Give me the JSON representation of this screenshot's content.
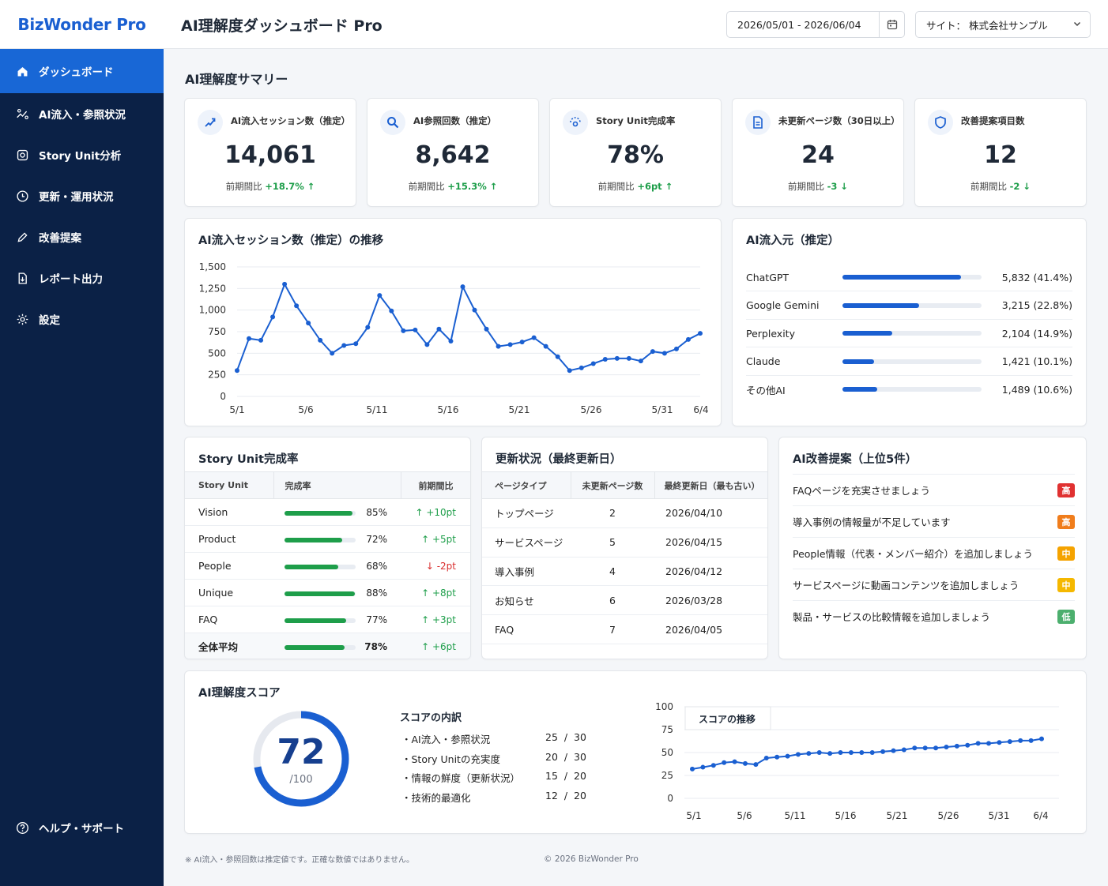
{
  "brand": "BizWonder Pro",
  "nav": [
    {
      "label": "ダッシュボード",
      "icon": "home-icon",
      "active": true
    },
    {
      "label": "AI流入・参照状況",
      "icon": "traffic-icon"
    },
    {
      "label": "Story Unit分析",
      "icon": "story-icon"
    },
    {
      "label": "更新・運用状況",
      "icon": "update-icon"
    },
    {
      "label": "改善提案",
      "icon": "pencil-icon"
    },
    {
      "label": "レポート出力",
      "icon": "report-icon"
    },
    {
      "label": "設定",
      "icon": "gear-icon"
    }
  ],
  "help_label": "ヘルプ・サポート",
  "header": {
    "title": "AI理解度ダッシュボード Pro",
    "date_range": "2026/05/01 - 2026/06/04",
    "site": "サイト： 株式会社サンプル"
  },
  "summary_title": "AI理解度サマリー",
  "kpis": [
    {
      "title": "AI流入セッション数（推定）",
      "value": "14,061",
      "cmp_label": "前期間比",
      "change": "+18.7%",
      "dir": "up",
      "icon": "ai-traffic-icon"
    },
    {
      "title": "AI参照回数（推定）",
      "value": "8,642",
      "cmp_label": "前期間比",
      "change": "+15.3%",
      "dir": "up",
      "icon": "search-icon"
    },
    {
      "title": "Story Unit完成率",
      "value": "78%",
      "cmp_label": "前期間比",
      "change": "+6pt",
      "dir": "up",
      "icon": "story-unit-icon"
    },
    {
      "title": "未更新ページ数（30日以上）",
      "value": "24",
      "cmp_label": "前期間比",
      "change": "-3",
      "dir": "down",
      "icon": "document-icon"
    },
    {
      "title": "改善提案項目数",
      "value": "12",
      "cmp_label": "前期間比",
      "change": "-2",
      "dir": "down",
      "icon": "shield-icon"
    }
  ],
  "sessions_chart": {
    "title": "AI流入セッション数（推定）の推移",
    "chart_data": {
      "type": "line",
      "x_ticks": [
        "5/1",
        "5/6",
        "5/11",
        "5/16",
        "5/21",
        "5/26",
        "5/31",
        "6/4"
      ],
      "y_ticks": [
        "0",
        "250",
        "500",
        "750",
        "1,000",
        "1,250",
        "1,500"
      ],
      "ylim": [
        0,
        1500
      ],
      "values": [
        300,
        670,
        650,
        920,
        1300,
        1050,
        850,
        650,
        500,
        590,
        610,
        800,
        1170,
        990,
        760,
        770,
        600,
        780,
        640,
        1270,
        1000,
        780,
        580,
        600,
        630,
        680,
        580,
        460,
        300,
        330,
        380,
        430,
        440,
        440,
        410,
        520,
        500,
        550,
        660,
        730
      ]
    }
  },
  "sources": {
    "title": "AI流入元（推定）",
    "items": [
      {
        "name": "ChatGPT",
        "value": "5,832 (41.4%)",
        "pct": 0.85
      },
      {
        "name": "Google Gemini",
        "value": "3,215 (22.8%)",
        "pct": 0.55
      },
      {
        "name": "Perplexity",
        "value": "2,104 (14.9%)",
        "pct": 0.36
      },
      {
        "name": "Claude",
        "value": "1,421 (10.1%)",
        "pct": 0.23
      },
      {
        "name": "その他AI",
        "value": "1,489 (10.6%)",
        "pct": 0.25
      }
    ]
  },
  "story_units": {
    "title": "Story Unit完成率",
    "headers": [
      "Story Unit",
      "完成率",
      "前期間比"
    ],
    "rows": [
      {
        "name": "Vision",
        "rate": "85%",
        "pct": 0.95,
        "change": "+10pt",
        "dir": "up"
      },
      {
        "name": "Product",
        "rate": "72%",
        "pct": 0.81,
        "change": "+5pt",
        "dir": "up"
      },
      {
        "name": "People",
        "rate": "68%",
        "pct": 0.76,
        "change": "-2pt",
        "dir": "down"
      },
      {
        "name": "Unique",
        "rate": "88%",
        "pct": 0.99,
        "change": "+8pt",
        "dir": "up"
      },
      {
        "name": "FAQ",
        "rate": "77%",
        "pct": 0.87,
        "change": "+3pt",
        "dir": "up"
      },
      {
        "name": "全体平均",
        "rate": "78%",
        "pct": 0.84,
        "change": "+6pt",
        "dir": "up",
        "bold": true
      }
    ]
  },
  "update_status": {
    "title": "更新状況（最終更新日）",
    "headers": [
      "ページタイプ",
      "未更新ページ数",
      "最終更新日（最も古い）"
    ],
    "rows": [
      {
        "type": "トップページ",
        "count": "2",
        "date": "2026/04/10"
      },
      {
        "type": "サービスページ",
        "count": "5",
        "date": "2026/04/15"
      },
      {
        "type": "導入事例",
        "count": "4",
        "date": "2026/04/12"
      },
      {
        "type": "お知らせ",
        "count": "6",
        "date": "2026/03/28"
      },
      {
        "type": "FAQ",
        "count": "7",
        "date": "2026/04/05"
      }
    ]
  },
  "suggestions": {
    "title": "AI改善提案（上位5件）",
    "items": [
      {
        "text": "FAQページを充実させましょう",
        "priority": "高",
        "color": "#e03131"
      },
      {
        "text": "導入事例の情報量が不足しています",
        "priority": "高",
        "color": "#f07d1c"
      },
      {
        "text": "People情報（代表・メンバー紹介）を追加しましょう",
        "priority": "中",
        "color": "#f5a300"
      },
      {
        "text": "サービスページに動画コンテンツを追加しましょう",
        "priority": "中",
        "color": "#f5b800"
      },
      {
        "text": "製品・サービスの比較情報を追加しましょう",
        "priority": "低",
        "color": "#4caf6e"
      }
    ]
  },
  "score": {
    "title": "AI理解度スコア",
    "value": "72",
    "max": "/100",
    "fraction": 0.72,
    "breakdown_title": "スコアの内訳",
    "breakdown": [
      {
        "label": "・AI流入・参照状況",
        "score": "25  /  30"
      },
      {
        "label": "・Story Unitの充実度",
        "score": "20  /  30"
      },
      {
        "label": "・情報の鮮度（更新状況）",
        "score": "15  /  20"
      },
      {
        "label": "・技術的最適化",
        "score": "12  /  20"
      }
    ],
    "trend": {
      "title": "スコアの推移",
      "chart_data": {
        "type": "line",
        "x_ticks": [
          "5/1",
          "5/6",
          "5/11",
          "5/16",
          "5/21",
          "5/26",
          "5/31",
          "6/4"
        ],
        "y_ticks": [
          "0",
          "25",
          "50",
          "75",
          "100"
        ],
        "ylim": [
          0,
          100
        ],
        "values": [
          32,
          34,
          36,
          39,
          40,
          38,
          37,
          44,
          45,
          46,
          48,
          49,
          50,
          49,
          50,
          50,
          50,
          50,
          51,
          52,
          53,
          55,
          55,
          55,
          56,
          57,
          58,
          60,
          60,
          61,
          62,
          63,
          63,
          65
        ]
      }
    }
  },
  "footer_note": "※ AI流入・参照回数は推定値です。正確な数値ではありません。",
  "footer_copy": "© 2026 BizWonder Pro"
}
